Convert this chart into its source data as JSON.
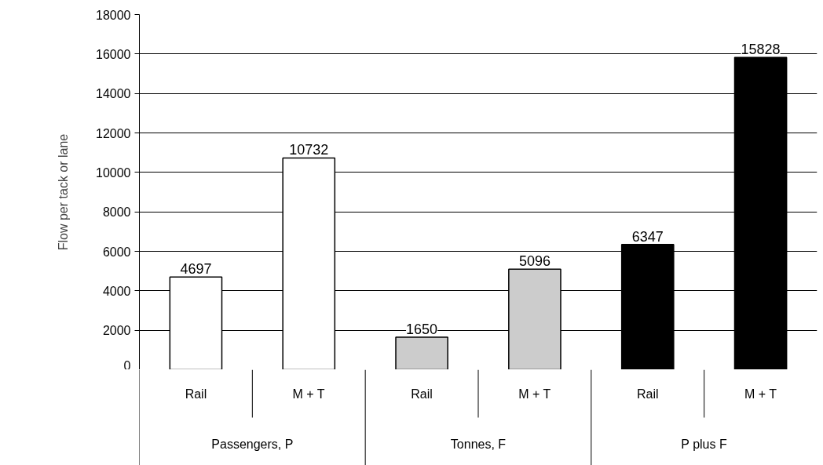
{
  "chart_data": {
    "type": "bar",
    "ylabel": "Flow per tack or lane",
    "categories": [
      "Rail",
      "M + T",
      "Rail",
      "M + T",
      "Rail",
      "M + T"
    ],
    "values": [
      4697,
      10732,
      1650,
      5096,
      6347,
      15828
    ],
    "colors": [
      "#ffffff",
      "#ffffff",
      "#cccccc",
      "#cccccc",
      "#000000",
      "#000000"
    ],
    "annotations": [
      "Passengers, P",
      "Tonnes, F",
      "P plus F"
    ],
    "ylim": [
      0,
      18000
    ],
    "yticks": [
      0,
      2000,
      4000,
      6000,
      8000,
      10000,
      12000,
      14000,
      16000,
      18000
    ],
    "grid": "y",
    "data_labels": true
  }
}
